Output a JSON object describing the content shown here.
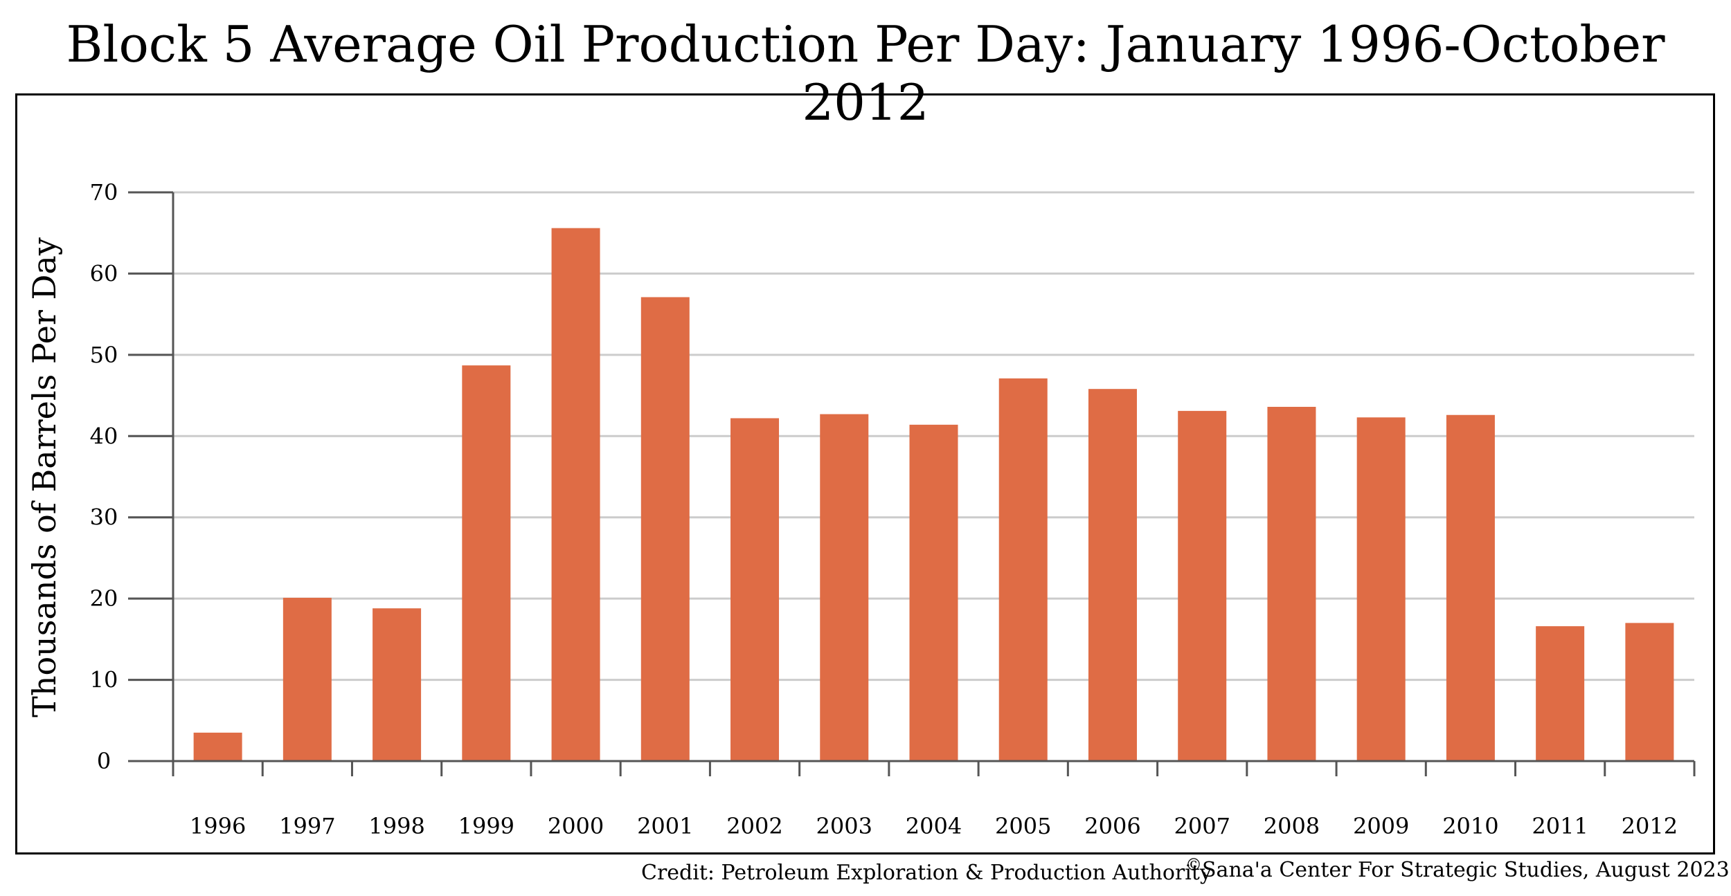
{
  "title": "Block 5 Average Oil Production Per Day: January 1996-October 2012",
  "credit": "Credit: Petroleum Exploration & Production Authority",
  "copyright_symbol": "©",
  "copyright": "Sana'a Center For Strategic Studies, August 2023",
  "colors": {
    "bar": "#DF6C45",
    "grid": "#CCCCCC",
    "axis": "#555555"
  },
  "chart_data": {
    "type": "bar",
    "title": "Block 5 Average Oil Production Per Day: January 1996-October 2012",
    "xlabel": "",
    "ylabel": "Thousands of Barrels Per Day",
    "categories": [
      "1996",
      "1997",
      "1998",
      "1999",
      "2000",
      "2001",
      "2002",
      "2003",
      "2004",
      "2005",
      "2006",
      "2007",
      "2008",
      "2009",
      "2010",
      "2011",
      "2012"
    ],
    "values": [
      3.5,
      20.1,
      18.8,
      48.7,
      65.6,
      57.1,
      42.2,
      42.7,
      41.4,
      47.1,
      45.8,
      43.1,
      43.6,
      42.3,
      42.6,
      16.6,
      17.0
    ],
    "yticks": [
      0,
      10,
      20,
      30,
      40,
      50,
      60,
      70
    ],
    "ylim": [
      0,
      70
    ],
    "grid": true,
    "legend": "none"
  }
}
